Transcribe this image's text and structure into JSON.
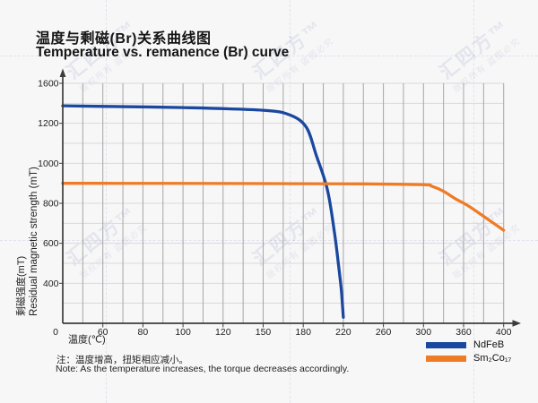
{
  "watermark": {
    "brand": "汇四方™",
    "notice": "版权所有 盗图必究"
  },
  "note": {
    "zh": "注：温度增高，扭矩相应减小。",
    "en": "Note: As the temperature increases, the torque decreases accordingly."
  },
  "chart_data": {
    "type": "line",
    "title_zh": "温度与剩磁(Br)关系曲线图",
    "title_en": "Temperature vs. remanence (Br) curve",
    "xlabel": "温度(℃)",
    "ylabel_zh": "剩磁强度(mT)",
    "ylabel_en": "Residual magnetic strength (mT)",
    "x_ticks": [
      0,
      60,
      80,
      100,
      120,
      150,
      180,
      220,
      260,
      300,
      360,
      400
    ],
    "y_ticks": [
      1600,
      1200,
      1000,
      800,
      600,
      400
    ],
    "ylim": [
      0,
      1600
    ],
    "grid": true,
    "legend_position": "bottom-right",
    "series": [
      {
        "name": "NdFeB",
        "color": "#1a489e",
        "points": [
          [
            0,
            1375
          ],
          [
            50,
            1370
          ],
          [
            100,
            1357
          ],
          [
            150,
            1330
          ],
          [
            170,
            1283
          ],
          [
            183,
            1180
          ],
          [
            193,
            1040
          ],
          [
            204,
            870
          ],
          [
            211,
            660
          ],
          [
            215,
            500
          ],
          [
            218,
            330
          ],
          [
            220,
            60
          ]
        ]
      },
      {
        "name": "Sm₂Co₁₇",
        "color": "#ee7b26",
        "points": [
          [
            0,
            900
          ],
          [
            60,
            900
          ],
          [
            120,
            899
          ],
          [
            180,
            898
          ],
          [
            240,
            897
          ],
          [
            300,
            893
          ],
          [
            312,
            886
          ],
          [
            330,
            860
          ],
          [
            348,
            822
          ],
          [
            365,
            786
          ],
          [
            382,
            728
          ],
          [
            400,
            665
          ]
        ]
      }
    ]
  },
  "colors": {
    "grid_vertical": "#a5a5a5",
    "grid_horizontal": "#d9d9d9",
    "axis": "#3c3c3c",
    "text": "#222222"
  }
}
